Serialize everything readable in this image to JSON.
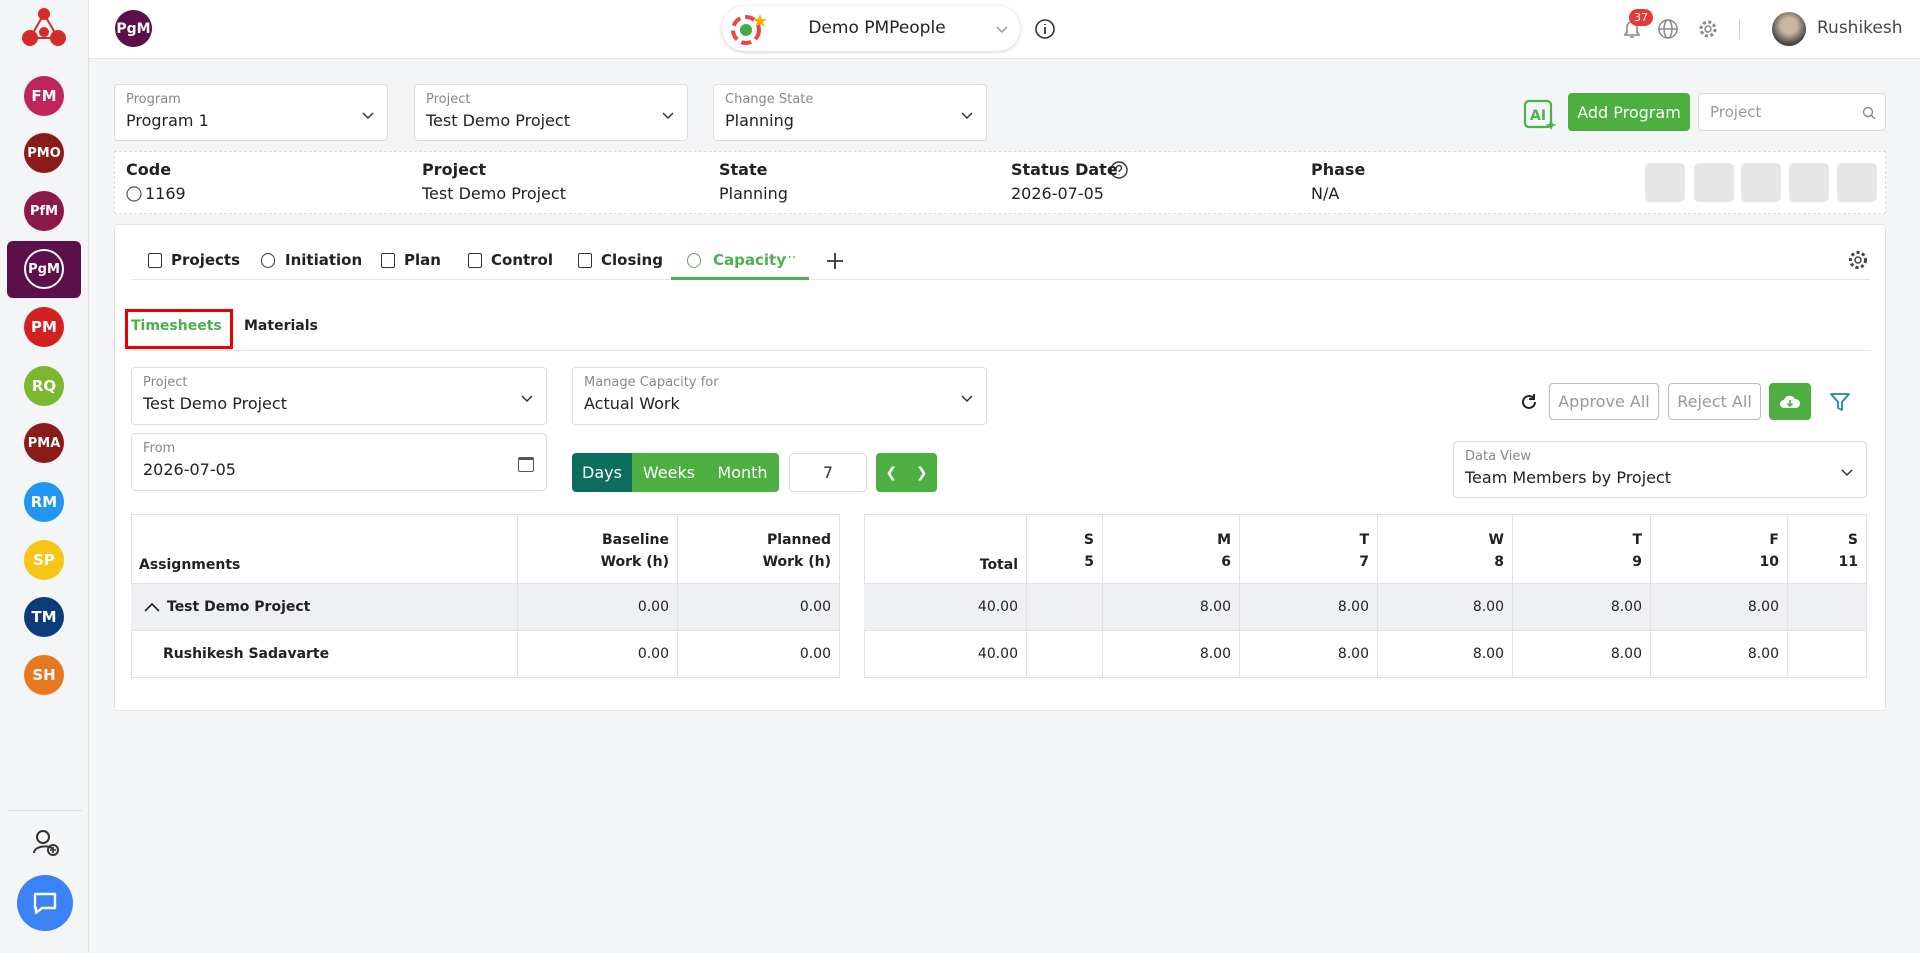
{
  "brand": {
    "module": "PgM",
    "workspace": "Demo PMPeople",
    "notifications": "37",
    "user": "Rushikesh"
  },
  "nav": [
    "FM",
    "PMO",
    "PfM",
    "PgM",
    "PM",
    "RQ",
    "PMA",
    "RM",
    "SP",
    "TM",
    "SH"
  ],
  "selectors": [
    {
      "label": "Program",
      "value": "Program 1"
    },
    {
      "label": "Project",
      "value": "Test Demo Project"
    },
    {
      "label": "Change State",
      "value": "Planning"
    }
  ],
  "actions": {
    "add": "Add Program",
    "search_placeholder": "Project"
  },
  "info": [
    {
      "label": "Code",
      "value": "1169"
    },
    {
      "label": "Project",
      "value": "Test Demo Project"
    },
    {
      "label": "State",
      "value": "Planning"
    },
    {
      "label": "Status Date",
      "value": "2026-07-05"
    },
    {
      "label": "Phase",
      "value": "N/A"
    }
  ],
  "tabs": [
    "Projects",
    "Initiation",
    "Plan",
    "Control",
    "Closing",
    "Capacity"
  ],
  "subtabs": [
    "Timesheets",
    "Materials"
  ],
  "filters": {
    "project": {
      "label": "Project",
      "value": "Test Demo Project"
    },
    "capacity": {
      "label": "Manage Capacity for",
      "value": "Actual Work"
    },
    "from": {
      "label": "From",
      "value": "2026-07-05"
    },
    "periods": [
      "Days",
      "Weeks",
      "Month"
    ],
    "count": "7",
    "approve": "Approve All",
    "reject": "Reject All",
    "data_view": {
      "label": "Data View",
      "value": "Team Members by Project"
    }
  },
  "table": {
    "headers": [
      "Assignments",
      [
        "Baseline",
        "Work (h)"
      ],
      [
        "Planned",
        "Work (h)"
      ],
      "Total"
    ],
    "days": [
      [
        "S",
        "5"
      ],
      [
        "M",
        "6"
      ],
      [
        "T",
        "7"
      ],
      [
        "W",
        "8"
      ],
      [
        "T",
        "9"
      ],
      [
        "F",
        "10"
      ],
      [
        "S",
        "11"
      ]
    ],
    "rows": [
      {
        "name": "Test Demo Project",
        "baseline": "0.00",
        "planned": "0.00",
        "total": "40.00",
        "days": [
          null,
          "8.00",
          "8.00",
          "8.00",
          "8.00",
          "8.00",
          null
        ]
      },
      {
        "name": "Rushikesh Sadavarte",
        "baseline": "0.00",
        "planned": "0.00",
        "total": "40.00",
        "days": [
          null,
          "8.00",
          "8.00",
          "8.00",
          "8.00",
          "8.00",
          null
        ]
      }
    ]
  }
}
